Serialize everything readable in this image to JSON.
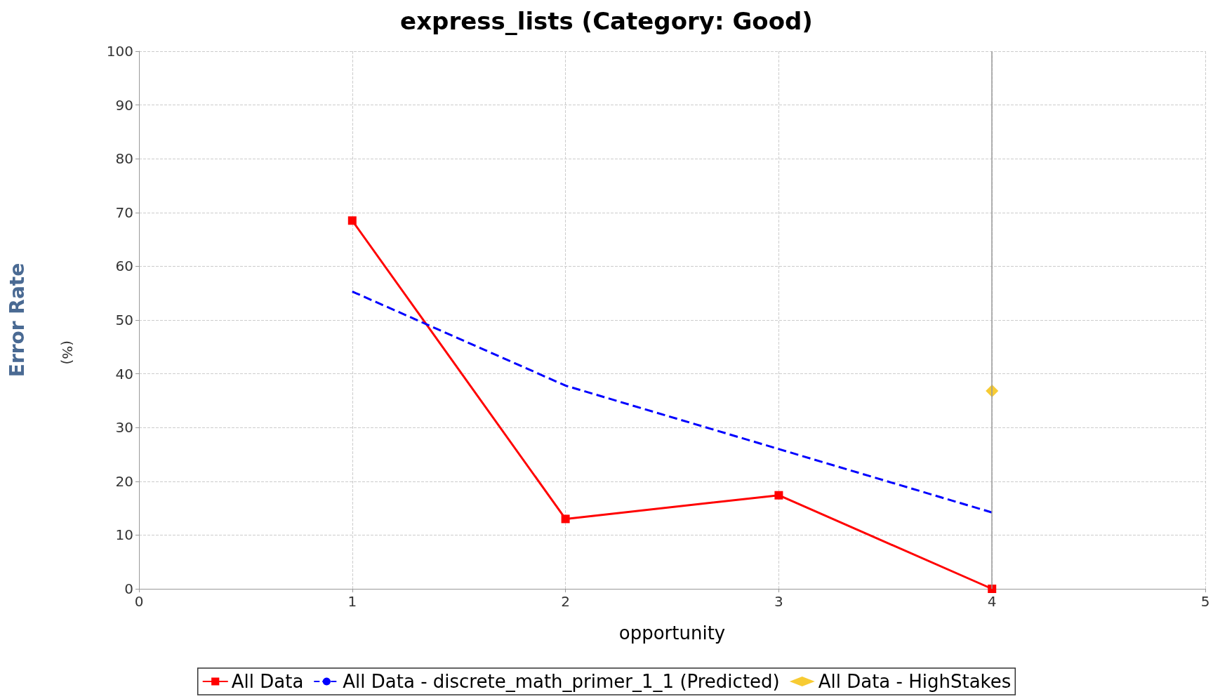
{
  "chart_data": {
    "type": "line",
    "title": "express_lists (Category: Good)",
    "xlabel": "opportunity",
    "ylabel": "Error Rate",
    "annotations": [
      "(%)"
    ],
    "xlim": [
      0,
      5
    ],
    "xticks": [
      0,
      1,
      2,
      3,
      4,
      5
    ],
    "ylim": [
      0,
      100
    ],
    "yticks": [
      0,
      10,
      20,
      30,
      40,
      50,
      60,
      70,
      80,
      90,
      100
    ],
    "grid": true,
    "legend": "bottom",
    "ref_lines": [
      {
        "axis": "x",
        "value": 4,
        "color": "#999999",
        "line_style": "solid"
      }
    ],
    "series": [
      {
        "name": "All Data",
        "color": "#ff0000",
        "marker": "square",
        "line_style": "solid",
        "x": [
          1,
          2,
          3,
          4
        ],
        "values": [
          68.5,
          13,
          17.4,
          0
        ]
      },
      {
        "name": "All Data - discrete_math_primer_1_1 (Predicted)",
        "color": "#0000ff",
        "marker": "none",
        "line_style": "dashed",
        "x": [
          1,
          2,
          3,
          4
        ],
        "values": [
          55.3,
          37.8,
          26,
          14.2
        ]
      },
      {
        "name": "All Data - HighStakes",
        "type": "scatter",
        "color": "#f5be00",
        "marker": "diamond",
        "x": [
          4
        ],
        "values": [
          36.8
        ]
      }
    ]
  }
}
